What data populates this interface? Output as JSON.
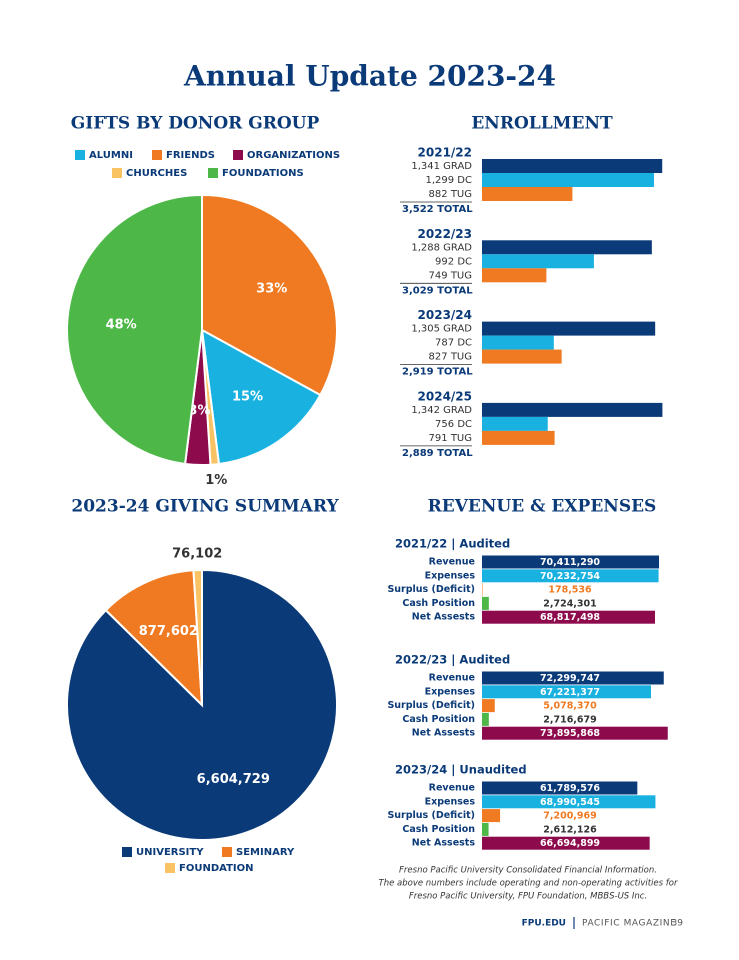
{
  "title": "Annual Update 2023-24",
  "chart_data": [
    {
      "type": "pie",
      "title": "GIFTS BY DONOR GROUP",
      "categories": [
        "FRIENDS",
        "ALUMNI",
        "CHURCHES",
        "ORGANIZATIONS",
        "FOUNDATIONS"
      ],
      "values": [
        33,
        15,
        1,
        3,
        48
      ],
      "value_labels": [
        "33%",
        "15%",
        "1%",
        "3%",
        "48%"
      ],
      "colors": [
        "#f07a22",
        "#19b2e0",
        "#f9c262",
        "#8d0b4c",
        "#4db848"
      ],
      "legend": "top"
    },
    {
      "type": "bar",
      "orientation": "horizontal",
      "title": "ENROLLMENT",
      "categories": [
        "2021/22",
        "2022/23",
        "2023/24",
        "2024/25"
      ],
      "series": [
        {
          "color": "#0b3a78",
          "values": [
            1341,
            1288,
            1305,
            1342
          ],
          "value_labels": [
            "1,341 GRAD",
            "1,288 GRAD",
            "1,305 GRAD",
            "1,342 GRAD"
          ]
        },
        {
          "color": "#19b2e0",
          "values": [
            1299,
            992,
            787,
            756
          ],
          "value_labels": [
            "1,299 DC",
            "992 DC",
            "787 DC",
            "756 DC"
          ]
        },
        {
          "color": "#f07a22",
          "values": [
            882,
            749,
            827,
            791
          ],
          "value_labels": [
            "882 TUG",
            "749 TUG",
            "827 TUG",
            "791 TUG"
          ]
        }
      ],
      "total_labels": [
        "3,522 TOTAL",
        "3,029 TOTAL",
        "2,919 TOTAL",
        "2,889 TOTAL"
      ],
      "xlim": [
        420,
        1345
      ]
    },
    {
      "type": "pie",
      "title": "2023-24 GIVING SUMMARY",
      "categories": [
        "UNIVERSITY",
        "SEMINARY",
        "FOUNDATION"
      ],
      "values": [
        6604729,
        877602,
        76102
      ],
      "value_labels": [
        "6,604,729",
        "877,602",
        "76,102"
      ],
      "colors": [
        "#0b3a78",
        "#f07a22",
        "#f9c262"
      ],
      "legend": "bottom"
    },
    {
      "type": "bar",
      "orientation": "horizontal",
      "title": "REVENUE & EXPENSES",
      "subtitle": "2021/22 | Audited",
      "categories": [
        "Revenue",
        "Expenses",
        "Surplus (Deficit)",
        "Cash Position",
        "Net Assests"
      ],
      "values": [
        70411290,
        70232754,
        178536,
        2724301,
        68817498
      ],
      "value_labels": [
        "70,411,290",
        "70,232,754",
        "178,536",
        "2,724,301",
        "68,817,498"
      ],
      "colors": [
        "#0b3a78",
        "#19b2e0",
        "#f07a22",
        "#4db848",
        "#8d0b4c"
      ],
      "label_colors": [
        "#ffffff",
        "#ffffff",
        "#f07a22",
        "#333333",
        "#ffffff"
      ],
      "xlim": [
        0,
        72000000
      ]
    },
    {
      "type": "bar",
      "orientation": "horizontal",
      "subtitle": "2022/23 | Audited",
      "categories": [
        "Revenue",
        "Expenses",
        "Surplus (Deficit)",
        "Cash Position",
        "Net Assests"
      ],
      "values": [
        72299747,
        67221377,
        5078370,
        2716679,
        73895868
      ],
      "value_labels": [
        "72,299,747",
        "67,221,377",
        "5,078,370",
        "2,716,679",
        "73,895,868"
      ],
      "colors": [
        "#0b3a78",
        "#19b2e0",
        "#f07a22",
        "#4db848",
        "#8d0b4c"
      ],
      "label_colors": [
        "#ffffff",
        "#ffffff",
        "#f07a22",
        "#333333",
        "#ffffff"
      ],
      "xlim": [
        0,
        72000000
      ]
    },
    {
      "type": "bar",
      "orientation": "horizontal",
      "subtitle": "2023/24 | Unaudited",
      "categories": [
        "Revenue",
        "Expenses",
        "Surplus (Deficit)",
        "Cash Position",
        "Net Assests"
      ],
      "values": [
        61789576,
        68990545,
        7200969,
        2612126,
        66694899
      ],
      "value_labels": [
        "61,789,576",
        "68,990,545",
        "7,200,969",
        "2,612,126",
        "66,694,899"
      ],
      "colors": [
        "#0b3a78",
        "#19b2e0",
        "#f07a22",
        "#4db848",
        "#8d0b4c"
      ],
      "label_colors": [
        "#ffffff",
        "#ffffff",
        "#f07a22",
        "#333333",
        "#ffffff"
      ],
      "xlim": [
        0,
        72000000
      ]
    }
  ],
  "note": [
    "Fresno Pacific University Consolidated Financial Information.",
    "The above numbers include operating and non-operating activities for",
    "Fresno Pacific University, FPU Foundation, MBBS-US Inc."
  ],
  "footer": {
    "site": "FPU.EDU",
    "magazine": "PACIFIC MAGAZINE",
    "page": "39"
  }
}
